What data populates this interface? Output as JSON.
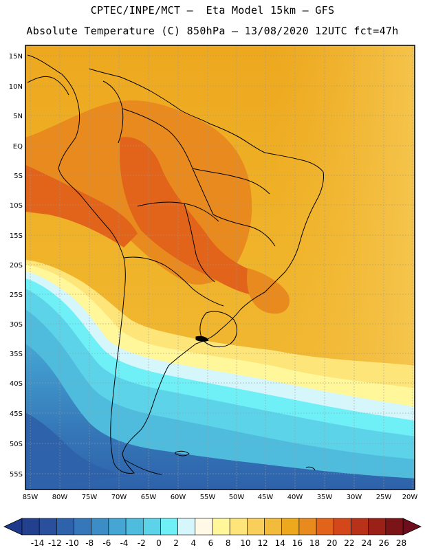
{
  "title_line1": "CPTEC/INPE/MCT —  Eta Model 15km — GFS",
  "title_line2": "Absolute Temperature (C) 850hPa — 13/08/2020 12UTC fct=47h",
  "map": {
    "lat_ticks": [
      "15N",
      "10N",
      "5N",
      "EQ",
      "5S",
      "10S",
      "15S",
      "20S",
      "25S",
      "30S",
      "35S",
      "40S",
      "45S",
      "50S",
      "55S"
    ],
    "lon_ticks": [
      "85W",
      "80W",
      "75W",
      "70W",
      "65W",
      "60W",
      "55W",
      "50W",
      "45W",
      "40W",
      "35W",
      "30W",
      "25W",
      "20W"
    ]
  },
  "colorbar": {
    "labels": [
      "-14",
      "-12",
      "-10",
      "-8",
      "-6",
      "-4",
      "-2",
      "0",
      "2",
      "4",
      "6",
      "8",
      "10",
      "12",
      "14",
      "16",
      "18",
      "20",
      "22",
      "24",
      "26",
      "28"
    ],
    "colors": [
      "#23408f",
      "#2a4f9c",
      "#2e62ab",
      "#3577b8",
      "#3c8cc6",
      "#45a6d4",
      "#4fbcdd",
      "#5cd3e9",
      "#6ff0f7",
      "#d5f6fb",
      "#fff9e6",
      "#fff79a",
      "#fde57a",
      "#f9cf5c",
      "#f3bb3c",
      "#eda81e",
      "#e88a1e",
      "#e2631a",
      "#d4471a",
      "#b8321a",
      "#9b2118",
      "#7a1416"
    ],
    "low_color": "#1f3a8a",
    "high_color": "#6e0d1c"
  }
}
